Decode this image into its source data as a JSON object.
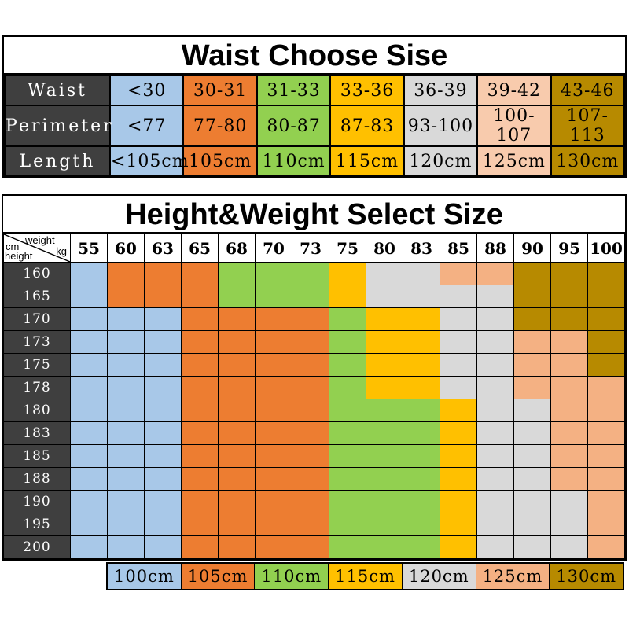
{
  "chart_data": [
    {
      "type": "table",
      "title": "Waist Choose Sise",
      "row_labels": [
        "Waist",
        "Perimeter",
        "Length"
      ],
      "rows": [
        [
          "<30",
          "30-31",
          "31-33",
          "33-36",
          "36-39",
          "39-42",
          "43-46"
        ],
        [
          "<77",
          "77-80",
          "80-87",
          "87-83",
          "93-100",
          "100-107",
          "107-113"
        ],
        [
          "<105cm",
          "105cm",
          "110cm",
          "115cm",
          "120cm",
          "125cm",
          "130cm"
        ]
      ],
      "column_colors": [
        "#a8c8e8",
        "#ed7d31",
        "#92d050",
        "#ffc000",
        "#d9d9d9",
        "#f8cbad",
        "#b78a00"
      ],
      "label_bg": "#3f3f3f"
    },
    {
      "type": "table",
      "title": "Height&Weight Select Size",
      "corner": {
        "top_left": "cm",
        "top_right": "weight",
        "bottom_left": "height",
        "bottom_right": "kg"
      },
      "weights_kg": [
        "55",
        "60",
        "63",
        "65",
        "68",
        "70",
        "73",
        "75",
        "80",
        "83",
        "85",
        "88",
        "90",
        "95",
        "100"
      ],
      "heights_cm": [
        "160",
        "165",
        "170",
        "173",
        "175",
        "178",
        "180",
        "183",
        "185",
        "188",
        "190",
        "195",
        "200"
      ],
      "cell_sizes": [
        [
          "100cm",
          "105cm",
          "105cm",
          "105cm",
          "110cm",
          "110cm",
          "110cm",
          "115cm",
          "120cm",
          "120cm",
          "125cm",
          "125cm",
          "130cm",
          "130cm",
          "130cm"
        ],
        [
          "100cm",
          "105cm",
          "105cm",
          "105cm",
          "110cm",
          "110cm",
          "110cm",
          "115cm",
          "120cm",
          "120cm",
          "120cm",
          "120cm",
          "130cm",
          "130cm",
          "130cm"
        ],
        [
          "100cm",
          "100cm",
          "100cm",
          "105cm",
          "105cm",
          "105cm",
          "105cm",
          "110cm",
          "115cm",
          "115cm",
          "120cm",
          "120cm",
          "130cm",
          "130cm",
          "130cm"
        ],
        [
          "100cm",
          "100cm",
          "100cm",
          "105cm",
          "105cm",
          "105cm",
          "105cm",
          "110cm",
          "115cm",
          "115cm",
          "120cm",
          "120cm",
          "125cm",
          "125cm",
          "130cm"
        ],
        [
          "100cm",
          "100cm",
          "100cm",
          "105cm",
          "105cm",
          "105cm",
          "105cm",
          "110cm",
          "115cm",
          "115cm",
          "120cm",
          "120cm",
          "125cm",
          "125cm",
          "130cm"
        ],
        [
          "100cm",
          "100cm",
          "100cm",
          "105cm",
          "105cm",
          "105cm",
          "105cm",
          "110cm",
          "115cm",
          "115cm",
          "120cm",
          "120cm",
          "125cm",
          "125cm",
          "125cm"
        ],
        [
          "100cm",
          "100cm",
          "100cm",
          "105cm",
          "105cm",
          "105cm",
          "105cm",
          "110cm",
          "110cm",
          "110cm",
          "115cm",
          "120cm",
          "120cm",
          "125cm",
          "125cm"
        ],
        [
          "100cm",
          "100cm",
          "100cm",
          "105cm",
          "105cm",
          "105cm",
          "105cm",
          "110cm",
          "110cm",
          "110cm",
          "115cm",
          "120cm",
          "120cm",
          "125cm",
          "125cm"
        ],
        [
          "100cm",
          "100cm",
          "100cm",
          "105cm",
          "105cm",
          "105cm",
          "105cm",
          "110cm",
          "110cm",
          "110cm",
          "115cm",
          "120cm",
          "120cm",
          "125cm",
          "125cm"
        ],
        [
          "100cm",
          "100cm",
          "100cm",
          "105cm",
          "105cm",
          "105cm",
          "105cm",
          "110cm",
          "110cm",
          "110cm",
          "115cm",
          "120cm",
          "120cm",
          "125cm",
          "125cm"
        ],
        [
          "100cm",
          "100cm",
          "100cm",
          "105cm",
          "105cm",
          "105cm",
          "105cm",
          "110cm",
          "110cm",
          "110cm",
          "115cm",
          "120cm",
          "120cm",
          "120cm",
          "125cm"
        ],
        [
          "100cm",
          "100cm",
          "100cm",
          "105cm",
          "105cm",
          "105cm",
          "105cm",
          "110cm",
          "110cm",
          "110cm",
          "115cm",
          "120cm",
          "120cm",
          "120cm",
          "125cm"
        ],
        [
          "100cm",
          "100cm",
          "100cm",
          "105cm",
          "105cm",
          "105cm",
          "105cm",
          "110cm",
          "110cm",
          "110cm",
          "115cm",
          "120cm",
          "120cm",
          "120cm",
          "125cm"
        ]
      ],
      "size_colors": {
        "100cm": "#a8c8e8",
        "105cm": "#ed7d31",
        "110cm": "#92d050",
        "115cm": "#ffc000",
        "120cm": "#d9d9d9",
        "125cm": "#f4b183",
        "130cm": "#b78a00"
      },
      "label_bg": "#3f3f3f"
    }
  ],
  "legend": {
    "items": [
      {
        "label": "100cm",
        "color": "#a8c8e8"
      },
      {
        "label": "105cm",
        "color": "#ed7d31"
      },
      {
        "label": "110cm",
        "color": "#92d050"
      },
      {
        "label": "115cm",
        "color": "#ffc000"
      },
      {
        "label": "120cm",
        "color": "#d9d9d9"
      },
      {
        "label": "125cm",
        "color": "#f4b183"
      },
      {
        "label": "130cm",
        "color": "#b78a00"
      }
    ]
  }
}
